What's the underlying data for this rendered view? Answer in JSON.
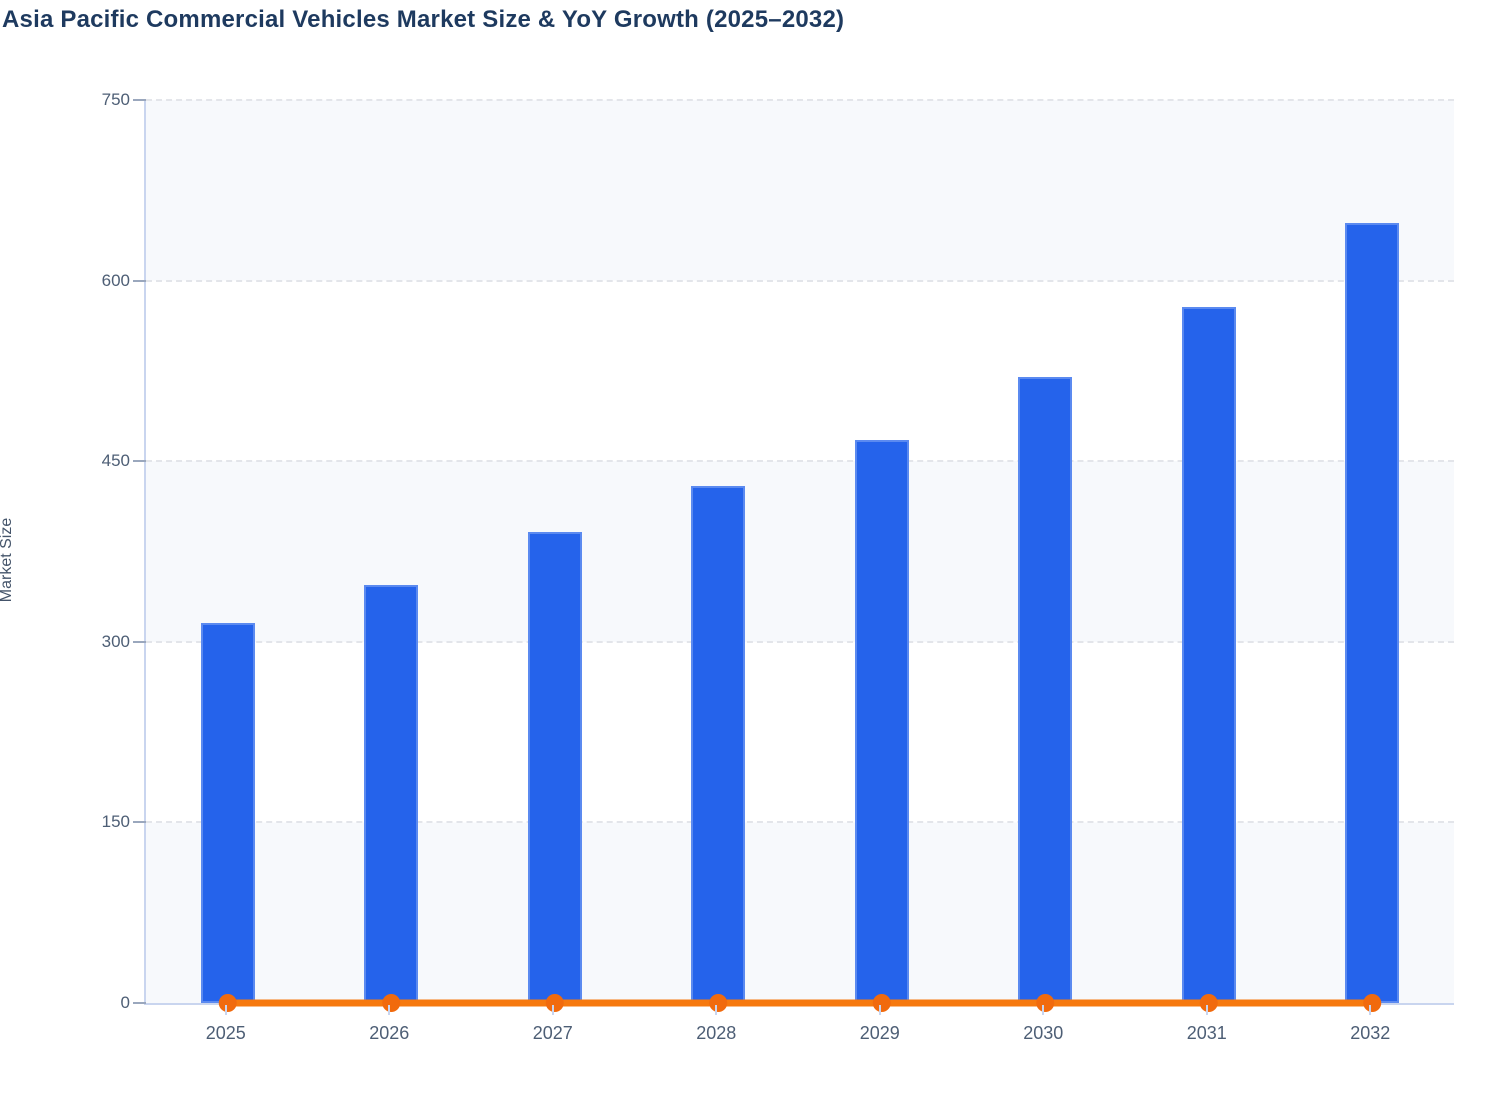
{
  "page": {
    "title": "Asia Pacific Commercial Vehicles Market Size & YoY Growth (2025–2032)"
  },
  "chart_data": {
    "type": "bar",
    "title": "Asia Pacific Commercial Vehicles Market Size & YoY Growth (2025–2032)",
    "categories": [
      "2025",
      "2026",
      "2027",
      "2028",
      "2029",
      "2030",
      "2031",
      "2032"
    ],
    "series": [
      {
        "name": "Market Size",
        "type": "bar",
        "color": "#2563eb",
        "values": [
          316,
          347,
          391,
          429,
          468,
          520,
          578,
          648
        ]
      },
      {
        "name": "YoY Growth",
        "type": "line",
        "color": "#f6790f",
        "marker_color": "#f16a0d",
        "values": [
          0,
          0,
          0,
          0,
          0,
          0,
          0,
          0
        ],
        "note": "line renders flat at ≈0 on the Market Size axis with a circular marker at each year"
      }
    ],
    "xlabel": "",
    "ylabel": "Market Size",
    "ylim": [
      0,
      750
    ],
    "yticks": [
      0,
      150,
      300,
      450,
      600,
      750
    ],
    "grid": "horizontal dashed gridlines",
    "legend": "none",
    "plot_background": "alternating horizontal bands #f7f9fc / #ffffff"
  },
  "colors": {
    "title_text": "#1e3a5f",
    "axis_line": "#c9d5ef",
    "tick_text": "#4d5e75",
    "bar_fill": "#2563eb",
    "line_stroke": "#f6790f",
    "marker_fill": "#f16a0d",
    "gridline": "#e3e5ea",
    "band_fill": "#f7f9fc"
  }
}
